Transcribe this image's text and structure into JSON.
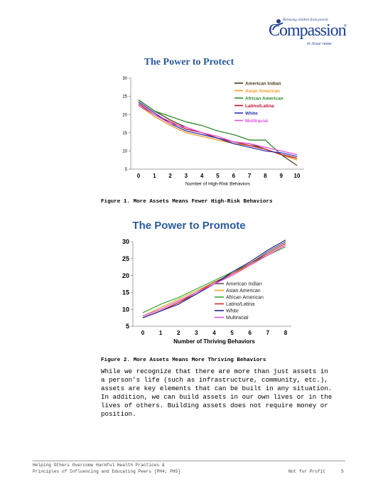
{
  "logo": {
    "tagline": "Releasing children from poverty",
    "brand": "Compassion",
    "reg": "®",
    "sub": "in Jesus' name"
  },
  "figure1": {
    "title": "The Power to Protect",
    "caption": "Figure 1. More Assets Means Fewer High-Risk Behaviors"
  },
  "figure2": {
    "title": "The Power to Promote",
    "caption": "Figure 2. More Assets Means More Thriving Behaviors"
  },
  "paragraph": "While we recognize that there are more than just assets in\na person’s life (such as infrastructure, community, etc.),\nassets are key elements that can be built in any situation.\nIn addition, we can build assets in our own lives or in the\nlives of others. Building assets does not require money or\nposition.",
  "footer": {
    "line1": "Helping Others Overcome Harmful Health Practices &",
    "line2": "Principles of Influencing and Educating Peers [PH4; PH5]",
    "status": "Not for Profit",
    "page": "5"
  },
  "chart_data": [
    {
      "type": "line",
      "xlabel": "Number of High-Risk Behaviors",
      "ylabel": "",
      "x": [
        0,
        1,
        2,
        3,
        4,
        5,
        6,
        7,
        8,
        9,
        10
      ],
      "ylim": [
        5,
        30
      ],
      "yticks": [
        5,
        10,
        15,
        20,
        25,
        30
      ],
      "legend_position": "top-right",
      "series": [
        {
          "name": "American Indian",
          "color": "#4a3a16",
          "values": [
            24,
            21,
            18.5,
            16.5,
            15,
            13.5,
            12.5,
            12,
            10.5,
            9,
            6
          ]
        },
        {
          "name": "Asian American",
          "color": "#f59a22",
          "values": [
            22.5,
            19.5,
            17,
            15,
            14,
            13,
            12,
            11.5,
            10.5,
            9,
            7.5
          ]
        },
        {
          "name": "African American",
          "color": "#2e8b2e",
          "values": [
            24,
            21,
            19.5,
            18,
            17,
            15.5,
            14.5,
            13,
            13,
            9,
            8
          ]
        },
        {
          "name": "Latino/Latina",
          "color": "#c0102c",
          "values": [
            23,
            20,
            18,
            16,
            15,
            13.5,
            12.5,
            11.5,
            10.5,
            9,
            8
          ]
        },
        {
          "name": "White",
          "color": "#2c35b0",
          "values": [
            23.5,
            20.5,
            17.5,
            15.5,
            14.5,
            13.5,
            12,
            11,
            10,
            9.5,
            8.5
          ]
        },
        {
          "name": "Multiracial",
          "color": "#e050e0",
          "values": [
            22.5,
            20,
            17.5,
            16.5,
            15,
            14,
            12.5,
            12,
            11,
            10,
            9
          ]
        }
      ]
    },
    {
      "type": "line",
      "xlabel": "Number of Thriving Behaviors",
      "ylabel": "",
      "x": [
        0,
        1,
        2,
        3,
        4,
        5,
        6,
        7,
        8
      ],
      "ylim": [
        5,
        30
      ],
      "yticks": [
        5,
        10,
        15,
        20,
        25,
        30
      ],
      "legend_position": "bottom-right",
      "series": [
        {
          "name": "American Indian",
          "color": "#555555",
          "values": [
            7.5,
            9.5,
            12,
            14.5,
            17.5,
            20.5,
            23.5,
            27,
            30
          ]
        },
        {
          "name": "Asian American",
          "color": "#f2a020",
          "values": [
            8,
            10.5,
            13,
            15.5,
            18,
            20.5,
            23,
            26,
            29
          ]
        },
        {
          "name": "African American",
          "color": "#33aa33",
          "values": [
            9,
            11.5,
            13.5,
            16,
            18.5,
            21,
            23.5,
            26,
            28.5
          ]
        },
        {
          "name": "Latino/Latina",
          "color": "#d02a1a",
          "values": [
            7.5,
            9.5,
            12,
            15,
            18,
            20.5,
            23.5,
            26.5,
            29.5
          ]
        },
        {
          "name": "White",
          "color": "#24229a",
          "values": [
            7.5,
            9.5,
            11.5,
            14.5,
            17.5,
            21,
            24,
            27.5,
            30.5
          ]
        },
        {
          "name": "Multiracial",
          "color": "#d84ee0",
          "values": [
            8,
            10,
            12.5,
            15,
            17.5,
            20,
            23,
            26,
            29
          ]
        }
      ]
    }
  ]
}
